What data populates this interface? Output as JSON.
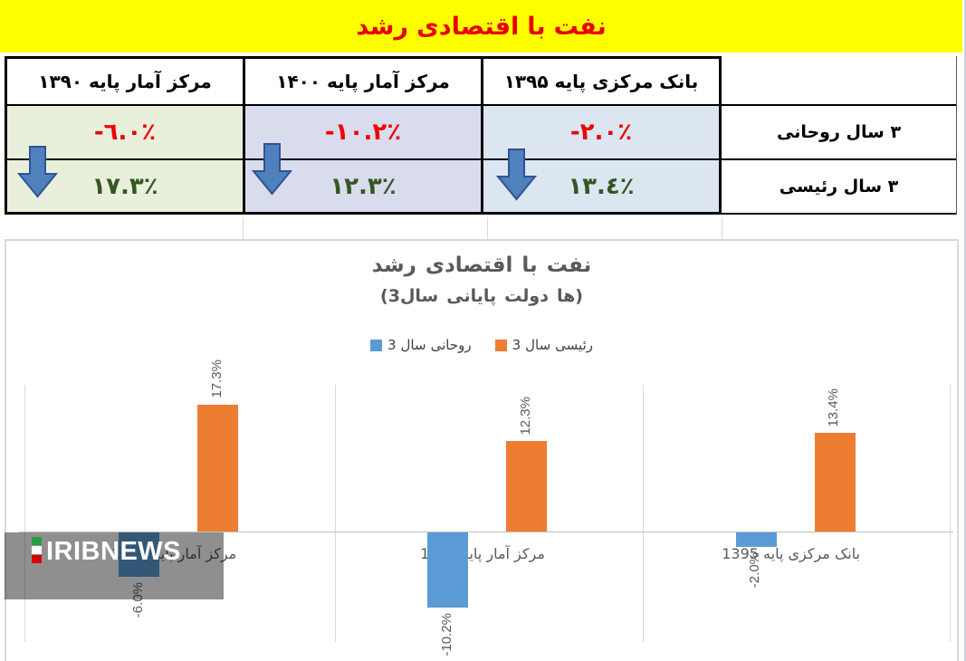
{
  "banner": {
    "title": "رشد اقتصادی با نفت"
  },
  "table": {
    "columns": [
      {
        "header": "بانک مرکزی پایه ۱۳۹۵",
        "bg": "#dce6f1",
        "rouhani": "-٢.٠٪",
        "raisi": "١٣.٤٪"
      },
      {
        "header": "مرکز آمار پایه ۱۴۰۰",
        "bg": "#d9dcec",
        "rouhani": "-١٠.٢٪",
        "raisi": "١٢.٣٪"
      },
      {
        "header": "مرکز آمار پایه ۱۳۹۰",
        "bg": "#e8f0dc",
        "rouhani": "-٦.٠٪",
        "raisi": "١٧.٣٪"
      }
    ],
    "row_labels": {
      "rouhani": "۳ سال روحانی",
      "raisi": "۳ سال رئیسی"
    },
    "value_colors": {
      "negative": "#ee0000",
      "positive": "#375623"
    },
    "arrow_color": "#4f81bd"
  },
  "watermark": {
    "brand": "IRIBNEWS",
    "flag_colors": {
      "green": "#239f40",
      "white": "#ffffff",
      "red": "#da0000"
    }
  },
  "chart_data": {
    "type": "bar",
    "title": "رشد اقتصادی با نفت",
    "subtitle": "(3سال پایانی دولت ها)",
    "categories": [
      "مرکز آمار پایه 1390",
      "مرکز آمار پایه 1400",
      "بانک مرکزی پایه 1395"
    ],
    "series": [
      {
        "name": "3 سال روحانی",
        "color": "#5b9bd5",
        "values": [
          -6.0,
          -10.2,
          -2.0
        ],
        "labels": [
          "-6.0%",
          "-10.2%",
          "-2.0%"
        ]
      },
      {
        "name": "3 سال رئیسی",
        "color": "#ed7d31",
        "values": [
          17.3,
          12.3,
          13.4
        ],
        "labels": [
          "17.3%",
          "12.3%",
          "13.4%"
        ]
      }
    ],
    "ylim": [
      -15,
      20
    ],
    "grid": "vertical category separators and zero line",
    "legend_position": "top"
  }
}
